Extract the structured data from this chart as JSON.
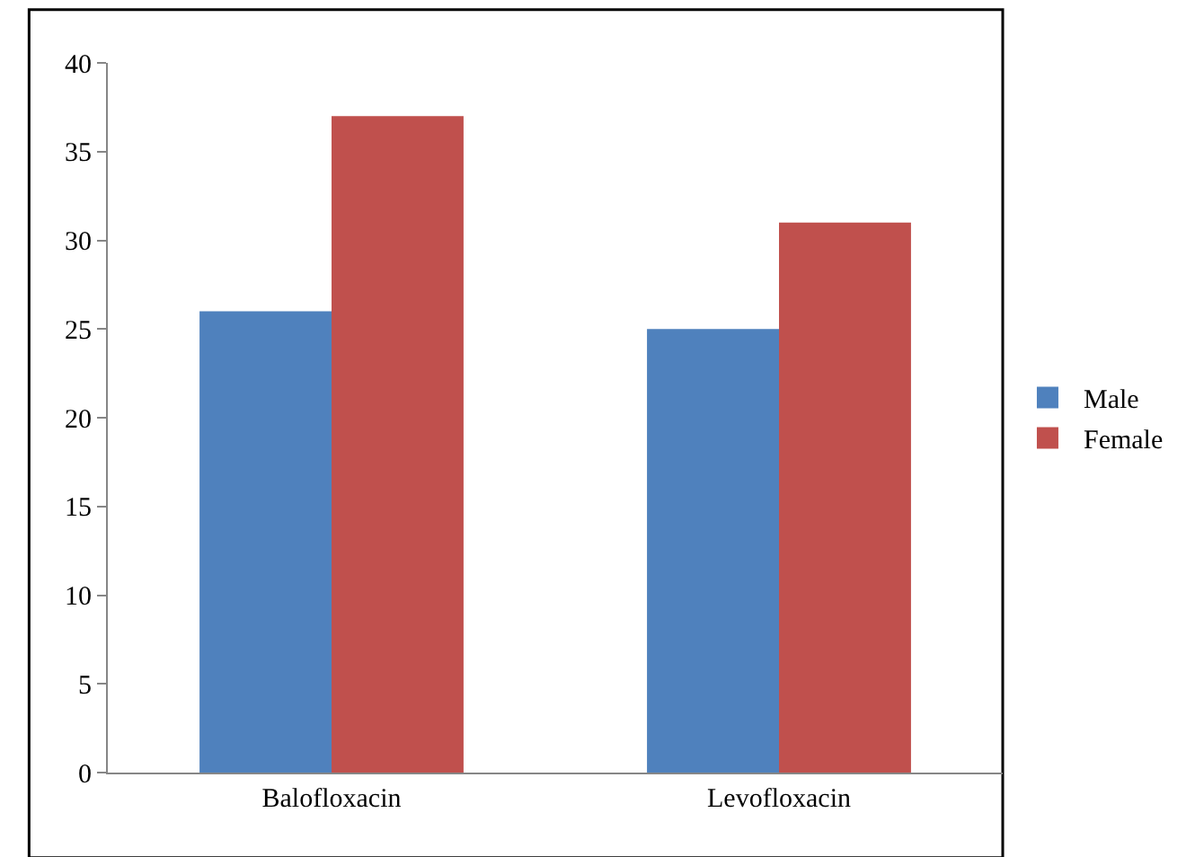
{
  "chart_data": {
    "type": "bar",
    "categories": [
      "Balofloxacin",
      "Levofloxacin"
    ],
    "series": [
      {
        "name": "Male",
        "color": "#4f81bd",
        "values": [
          26,
          25
        ]
      },
      {
        "name": "Female",
        "color": "#c0504d",
        "values": [
          37,
          31
        ]
      }
    ],
    "ylim": [
      0,
      40
    ],
    "yticks": [
      0,
      5,
      10,
      15,
      20,
      25,
      30,
      35,
      40
    ],
    "grid": false,
    "legend": "right"
  }
}
